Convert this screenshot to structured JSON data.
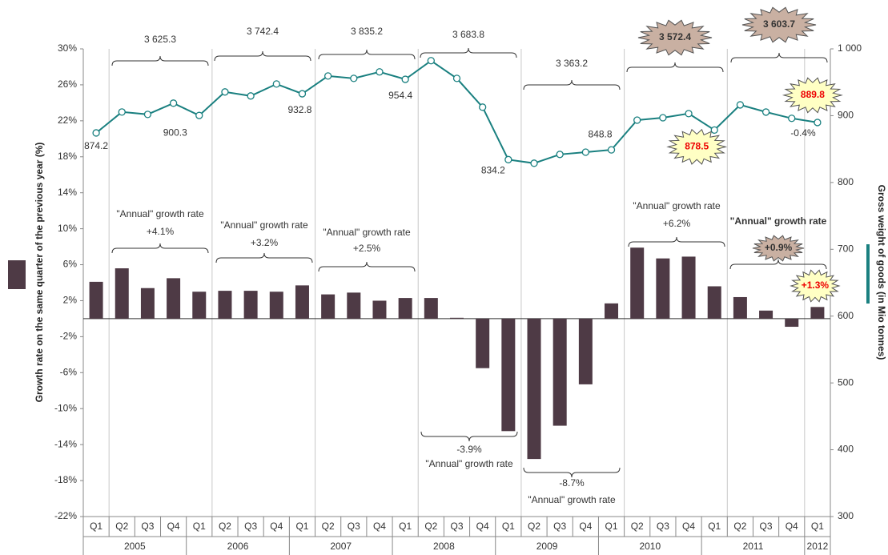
{
  "chart_data": {
    "type": "bar",
    "categories": [
      "Q1",
      "Q2",
      "Q3",
      "Q4",
      "Q1",
      "Q2",
      "Q3",
      "Q4",
      "Q1",
      "Q2",
      "Q3",
      "Q4",
      "Q1",
      "Q2",
      "Q3",
      "Q4",
      "Q1",
      "Q2",
      "Q3",
      "Q4",
      "Q1",
      "Q2",
      "Q3",
      "Q4",
      "Q1",
      "Q2",
      "Q3",
      "Q4",
      "Q1"
    ],
    "x_groups": [
      "2005",
      "2006",
      "2007",
      "2008",
      "2009",
      "2010",
      "2011",
      "2012"
    ],
    "ylabel": "Growth rate on the same quarter of the previous year (%)",
    "y2label": "Gross weight of goods (in Mio tonnes)",
    "ylim": [
      -22,
      30
    ],
    "yticks": [
      {
        "value": 30,
        "label": "30%"
      },
      {
        "value": 26,
        "label": "26%"
      },
      {
        "value": 22,
        "label": "22%"
      },
      {
        "value": 18,
        "label": "18%"
      },
      {
        "value": 14,
        "label": "14%"
      },
      {
        "value": 10,
        "label": "10%"
      },
      {
        "value": 6,
        "label": "6%"
      },
      {
        "value": 2,
        "label": "2%"
      },
      {
        "value": -2,
        "label": "-2%"
      },
      {
        "value": -6,
        "label": "-6%"
      },
      {
        "value": -10,
        "label": "-10%"
      },
      {
        "value": -14,
        "label": "-14%"
      },
      {
        "value": -18,
        "label": "-18%"
      },
      {
        "value": -22,
        "label": "-22%"
      }
    ],
    "y2lim": [
      300,
      1000
    ],
    "y2ticks": [
      300,
      400,
      500,
      600,
      700,
      800,
      900,
      {
        "value": 1000,
        "label": "1 000"
      }
    ],
    "series": [
      {
        "type": "bar",
        "color": "#4e3a45",
        "values": [
          4.1,
          5.6,
          3.4,
          4.5,
          3.0,
          3.1,
          3.1,
          3.0,
          3.7,
          2.7,
          2.9,
          2.0,
          2.3,
          2.3,
          0.1,
          -5.5,
          -12.5,
          -15.6,
          -11.9,
          -7.3,
          1.7,
          7.9,
          6.7,
          6.9,
          3.6,
          2.4,
          0.9,
          -0.9,
          1.3
        ],
        "value_labels": [
          null,
          null,
          null,
          null,
          null,
          null,
          null,
          null,
          null,
          null,
          null,
          null,
          null,
          null,
          null,
          null,
          null,
          null,
          null,
          null,
          null,
          null,
          null,
          null,
          null,
          null,
          null,
          null,
          "+1.3%"
        ]
      },
      {
        "type": "line",
        "axis": "y2",
        "color": "#1a8080",
        "values": [
          874.2,
          905.5,
          901.9,
          918.7,
          900.3,
          935.5,
          929.5,
          947.4,
          932.8,
          959.4,
          955.8,
          965.5,
          954.4,
          982.3,
          955.8,
          912.7,
          834.2,
          828.8,
          842.0,
          845.4,
          848.8,
          893.3,
          896.9,
          903.1,
          878.5,
          916.2,
          905.4,
          896.0,
          889.8
        ],
        "value_labels": [
          "874.2",
          null,
          null,
          null,
          "900.3",
          null,
          null,
          null,
          "932.8",
          null,
          null,
          null,
          "954.4",
          null,
          null,
          null,
          "834.2",
          null,
          null,
          null,
          "848.8",
          null,
          null,
          null,
          "878.5",
          null,
          null,
          null,
          "889.8"
        ]
      }
    ],
    "line_note": "-0.4%",
    "annual_totals": [
      "3 625.3",
      "3 742.4",
      "3 835.2",
      "3 683.8",
      "3 363.2",
      "3 572.4",
      "3 603.7"
    ],
    "annual_growth": [
      {
        "label": "\"Annual\" growth rate",
        "value": "+4.1%"
      },
      {
        "label": "\"Annual\" growth rate",
        "value": "+3.2%"
      },
      {
        "label": "\"Annual\" growth rate",
        "value": "+2.5%"
      },
      {
        "label": "\"Annual\" growth rate",
        "value": "-3.9%"
      },
      {
        "label": "\"Annual\" growth rate",
        "value": "-8.7%"
      },
      {
        "label": "\"Annual\" growth rate",
        "value": "+6.2%"
      },
      {
        "label": "\"Annual\" growth rate",
        "value": "+0.9%"
      }
    ]
  }
}
